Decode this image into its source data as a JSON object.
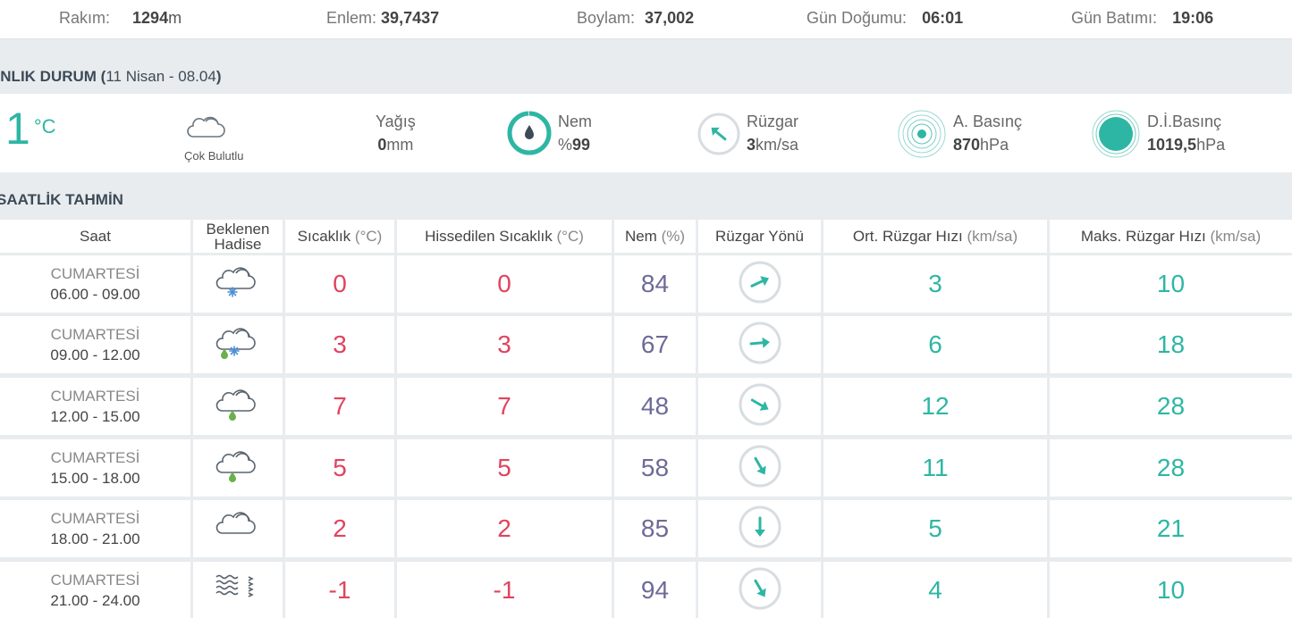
{
  "location": {
    "altitude_label": "Rakım:",
    "altitude_value": "1294",
    "altitude_unit": "m",
    "latitude_label": "Enlem:",
    "latitude_value": "39,7437",
    "longitude_label": "Boylam:",
    "longitude_value": "37,002",
    "sunrise_label": "Gün Doğumu:",
    "sunrise_value": "06:01",
    "sunset_label": "Gün Batımı:",
    "sunset_value": "19:06"
  },
  "current": {
    "title": "ANLIK DURUM (",
    "date": "11 Nisan - 08.04",
    "title_close": ")",
    "temp": "1",
    "temp_unit": "°C",
    "condition": "Çok Bulutlu",
    "condition_icon": "cloud-icon",
    "precip_label": "Yağış",
    "precip_value": "0",
    "precip_unit": "mm",
    "humidity_label": "Nem",
    "humidity_prefix": "%",
    "humidity_value": "99",
    "humidity_level": 0.99,
    "wind_label": "Rüzgar",
    "wind_value": "3",
    "wind_unit": "km/sa",
    "pressure_label": "A. Basınç",
    "pressure_value": "870",
    "pressure_unit": "hPa",
    "sea_pressure_label": "D.İ.Basınç",
    "sea_pressure_value": "1019,5",
    "sea_pressure_unit": "hPa"
  },
  "hourly": {
    "title": "SAATLİK TAHMİN",
    "headers": {
      "time": "Saat",
      "event_1": "Beklenen",
      "event_2": "Hadise",
      "temp": "Sıcaklık",
      "temp_unit": "(°C)",
      "feels": "Hissedilen Sıcaklık",
      "feels_unit": "(°C)",
      "humidity": "Nem",
      "humidity_unit": "(%)",
      "wind_dir": "Rüzgar Yönü",
      "avg_wind": "Ort. Rüzgar Hızı",
      "avg_wind_unit": "(km/sa)",
      "max_wind": "Maks. Rüzgar Hızı",
      "max_wind_unit": "(km/sa)"
    },
    "rows": [
      {
        "day": "CUMARTESİ",
        "range": "06.00 - 09.00",
        "icon": "cloud-snow-icon",
        "temp": "0",
        "feels": "0",
        "humidity": "84",
        "wind_deg": -25,
        "avg": "3",
        "max": "10"
      },
      {
        "day": "CUMARTESİ",
        "range": "09.00 - 12.00",
        "icon": "cloud-sleet-icon",
        "temp": "3",
        "feels": "3",
        "humidity": "67",
        "wind_deg": -5,
        "avg": "6",
        "max": "18"
      },
      {
        "day": "CUMARTESİ",
        "range": "12.00 - 15.00",
        "icon": "cloud-rain-icon",
        "temp": "7",
        "feels": "7",
        "humidity": "48",
        "wind_deg": 30,
        "avg": "12",
        "max": "28"
      },
      {
        "day": "CUMARTESİ",
        "range": "15.00 - 18.00",
        "icon": "cloud-rain-icon",
        "temp": "5",
        "feels": "5",
        "humidity": "58",
        "wind_deg": 60,
        "avg": "11",
        "max": "28"
      },
      {
        "day": "CUMARTESİ",
        "range": "18.00 - 21.00",
        "icon": "cloud-icon",
        "temp": "2",
        "feels": "2",
        "humidity": "85",
        "wind_deg": 90,
        "avg": "5",
        "max": "21"
      },
      {
        "day": "CUMARTESİ",
        "range": "21.00 - 24.00",
        "icon": "fog-icon",
        "temp": "-1",
        "feels": "-1",
        "humidity": "94",
        "wind_deg": 60,
        "avg": "4",
        "max": "10"
      }
    ]
  },
  "colors": {
    "teal": "#2eb6a4",
    "red": "#e0445e",
    "purple": "#6e6a96",
    "blue": "#4a90d9",
    "green": "#6ab04c"
  }
}
